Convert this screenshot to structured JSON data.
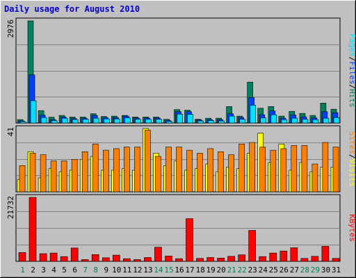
{
  "title": "Daily usage for August 2010",
  "colors": {
    "outer_bg": "#c0c0c0",
    "plot_bg": "#c0c0c0",
    "grid": "#808080",
    "title": "#0000cc",
    "hits": "#00805c",
    "files": "#0040ff",
    "pages": "#00e0ff",
    "visits": "#ffff00",
    "sites": "#ff8000",
    "kbytes": "#ff0000",
    "weekend_label": "#00805c",
    "weekday_label": "#000000"
  },
  "chart_data": [
    {
      "type": "bar",
      "panel": "hits-files-pages",
      "y_max_label": "2976",
      "ylim": [
        0,
        2976
      ],
      "right_label": {
        "pages": "Pages",
        "sep1": "/",
        "files": "Files",
        "sep2": "/",
        "hits": "Hits"
      },
      "categories": [
        "1",
        "2",
        "3",
        "4",
        "5",
        "6",
        "7",
        "8",
        "9",
        "10",
        "11",
        "12",
        "13",
        "14",
        "15",
        "16",
        "17",
        "18",
        "19",
        "20",
        "21",
        "22",
        "23",
        "24",
        "25",
        "26",
        "27",
        "28",
        "29",
        "30",
        "31"
      ],
      "series": [
        {
          "name": "Hits",
          "values": [
            100,
            2976,
            360,
            170,
            220,
            175,
            175,
            270,
            190,
            200,
            220,
            175,
            175,
            175,
            110,
            390,
            375,
            110,
            140,
            140,
            480,
            200,
            1190,
            430,
            480,
            200,
            340,
            280,
            220,
            580,
            400
          ]
        },
        {
          "name": "Files",
          "values": [
            60,
            1400,
            230,
            100,
            175,
            130,
            140,
            220,
            160,
            160,
            200,
            145,
            145,
            145,
            75,
            330,
            330,
            90,
            100,
            100,
            270,
            160,
            740,
            240,
            350,
            140,
            230,
            180,
            150,
            330,
            300
          ]
        },
        {
          "name": "Pages",
          "values": [
            40,
            650,
            160,
            70,
            140,
            100,
            110,
            140,
            120,
            120,
            150,
            110,
            110,
            110,
            45,
            260,
            250,
            60,
            70,
            60,
            200,
            110,
            520,
            150,
            240,
            100,
            140,
            110,
            100,
            140,
            160
          ]
        }
      ]
    },
    {
      "type": "bar",
      "panel": "visits-sites",
      "y_max_label": "41",
      "ylim": [
        0,
        41
      ],
      "right_label": {
        "sites": "Sites",
        "sep": "/",
        "visits": "Visits"
      },
      "categories": [
        "1",
        "2",
        "3",
        "4",
        "5",
        "6",
        "7",
        "8",
        "9",
        "10",
        "11",
        "12",
        "13",
        "14",
        "15",
        "16",
        "17",
        "18",
        "19",
        "20",
        "21",
        "22",
        "23",
        "24",
        "25",
        "26",
        "27",
        "28",
        "29",
        "30",
        "31"
      ],
      "series": [
        {
          "name": "Visits",
          "values": [
            8,
            26,
            9,
            15,
            13,
            14,
            21,
            23,
            14,
            14,
            15,
            14,
            41,
            25,
            17,
            20,
            14,
            15,
            18,
            13,
            16,
            15,
            25,
            38,
            19,
            31,
            14,
            19,
            13,
            16,
            16
          ]
        },
        {
          "name": "Sites",
          "values": [
            17,
            25,
            24,
            20,
            20,
            21,
            26,
            31,
            27,
            28,
            29,
            29,
            40,
            23,
            29,
            29,
            27,
            25,
            28,
            26,
            24,
            31,
            32,
            29,
            27,
            28,
            30,
            30,
            18,
            32,
            29
          ]
        }
      ]
    },
    {
      "type": "bar",
      "panel": "kbytes",
      "y_max_label": "21732",
      "ylim": [
        0,
        21732
      ],
      "right_label": {
        "kbytes": "KBytes"
      },
      "categories": [
        "1",
        "2",
        "3",
        "4",
        "5",
        "6",
        "7",
        "8",
        "9",
        "10",
        "11",
        "12",
        "13",
        "14",
        "15",
        "16",
        "17",
        "18",
        "19",
        "20",
        "21",
        "22",
        "23",
        "24",
        "25",
        "26",
        "27",
        "28",
        "29",
        "30",
        "31"
      ],
      "weekend_days": [
        "1",
        "7",
        "8",
        "14",
        "15",
        "21",
        "22",
        "28",
        "29"
      ],
      "series": [
        {
          "name": "KBytes",
          "values": [
            3000,
            21732,
            2600,
            2800,
            1600,
            4500,
            600,
            2300,
            1200,
            2100,
            900,
            600,
            1300,
            4800,
            1800,
            900,
            14500,
            1000,
            1300,
            1100,
            1700,
            2200,
            10500,
            1600,
            2800,
            3500,
            4600,
            1000,
            1700,
            5100,
            1000
          ]
        }
      ]
    }
  ]
}
